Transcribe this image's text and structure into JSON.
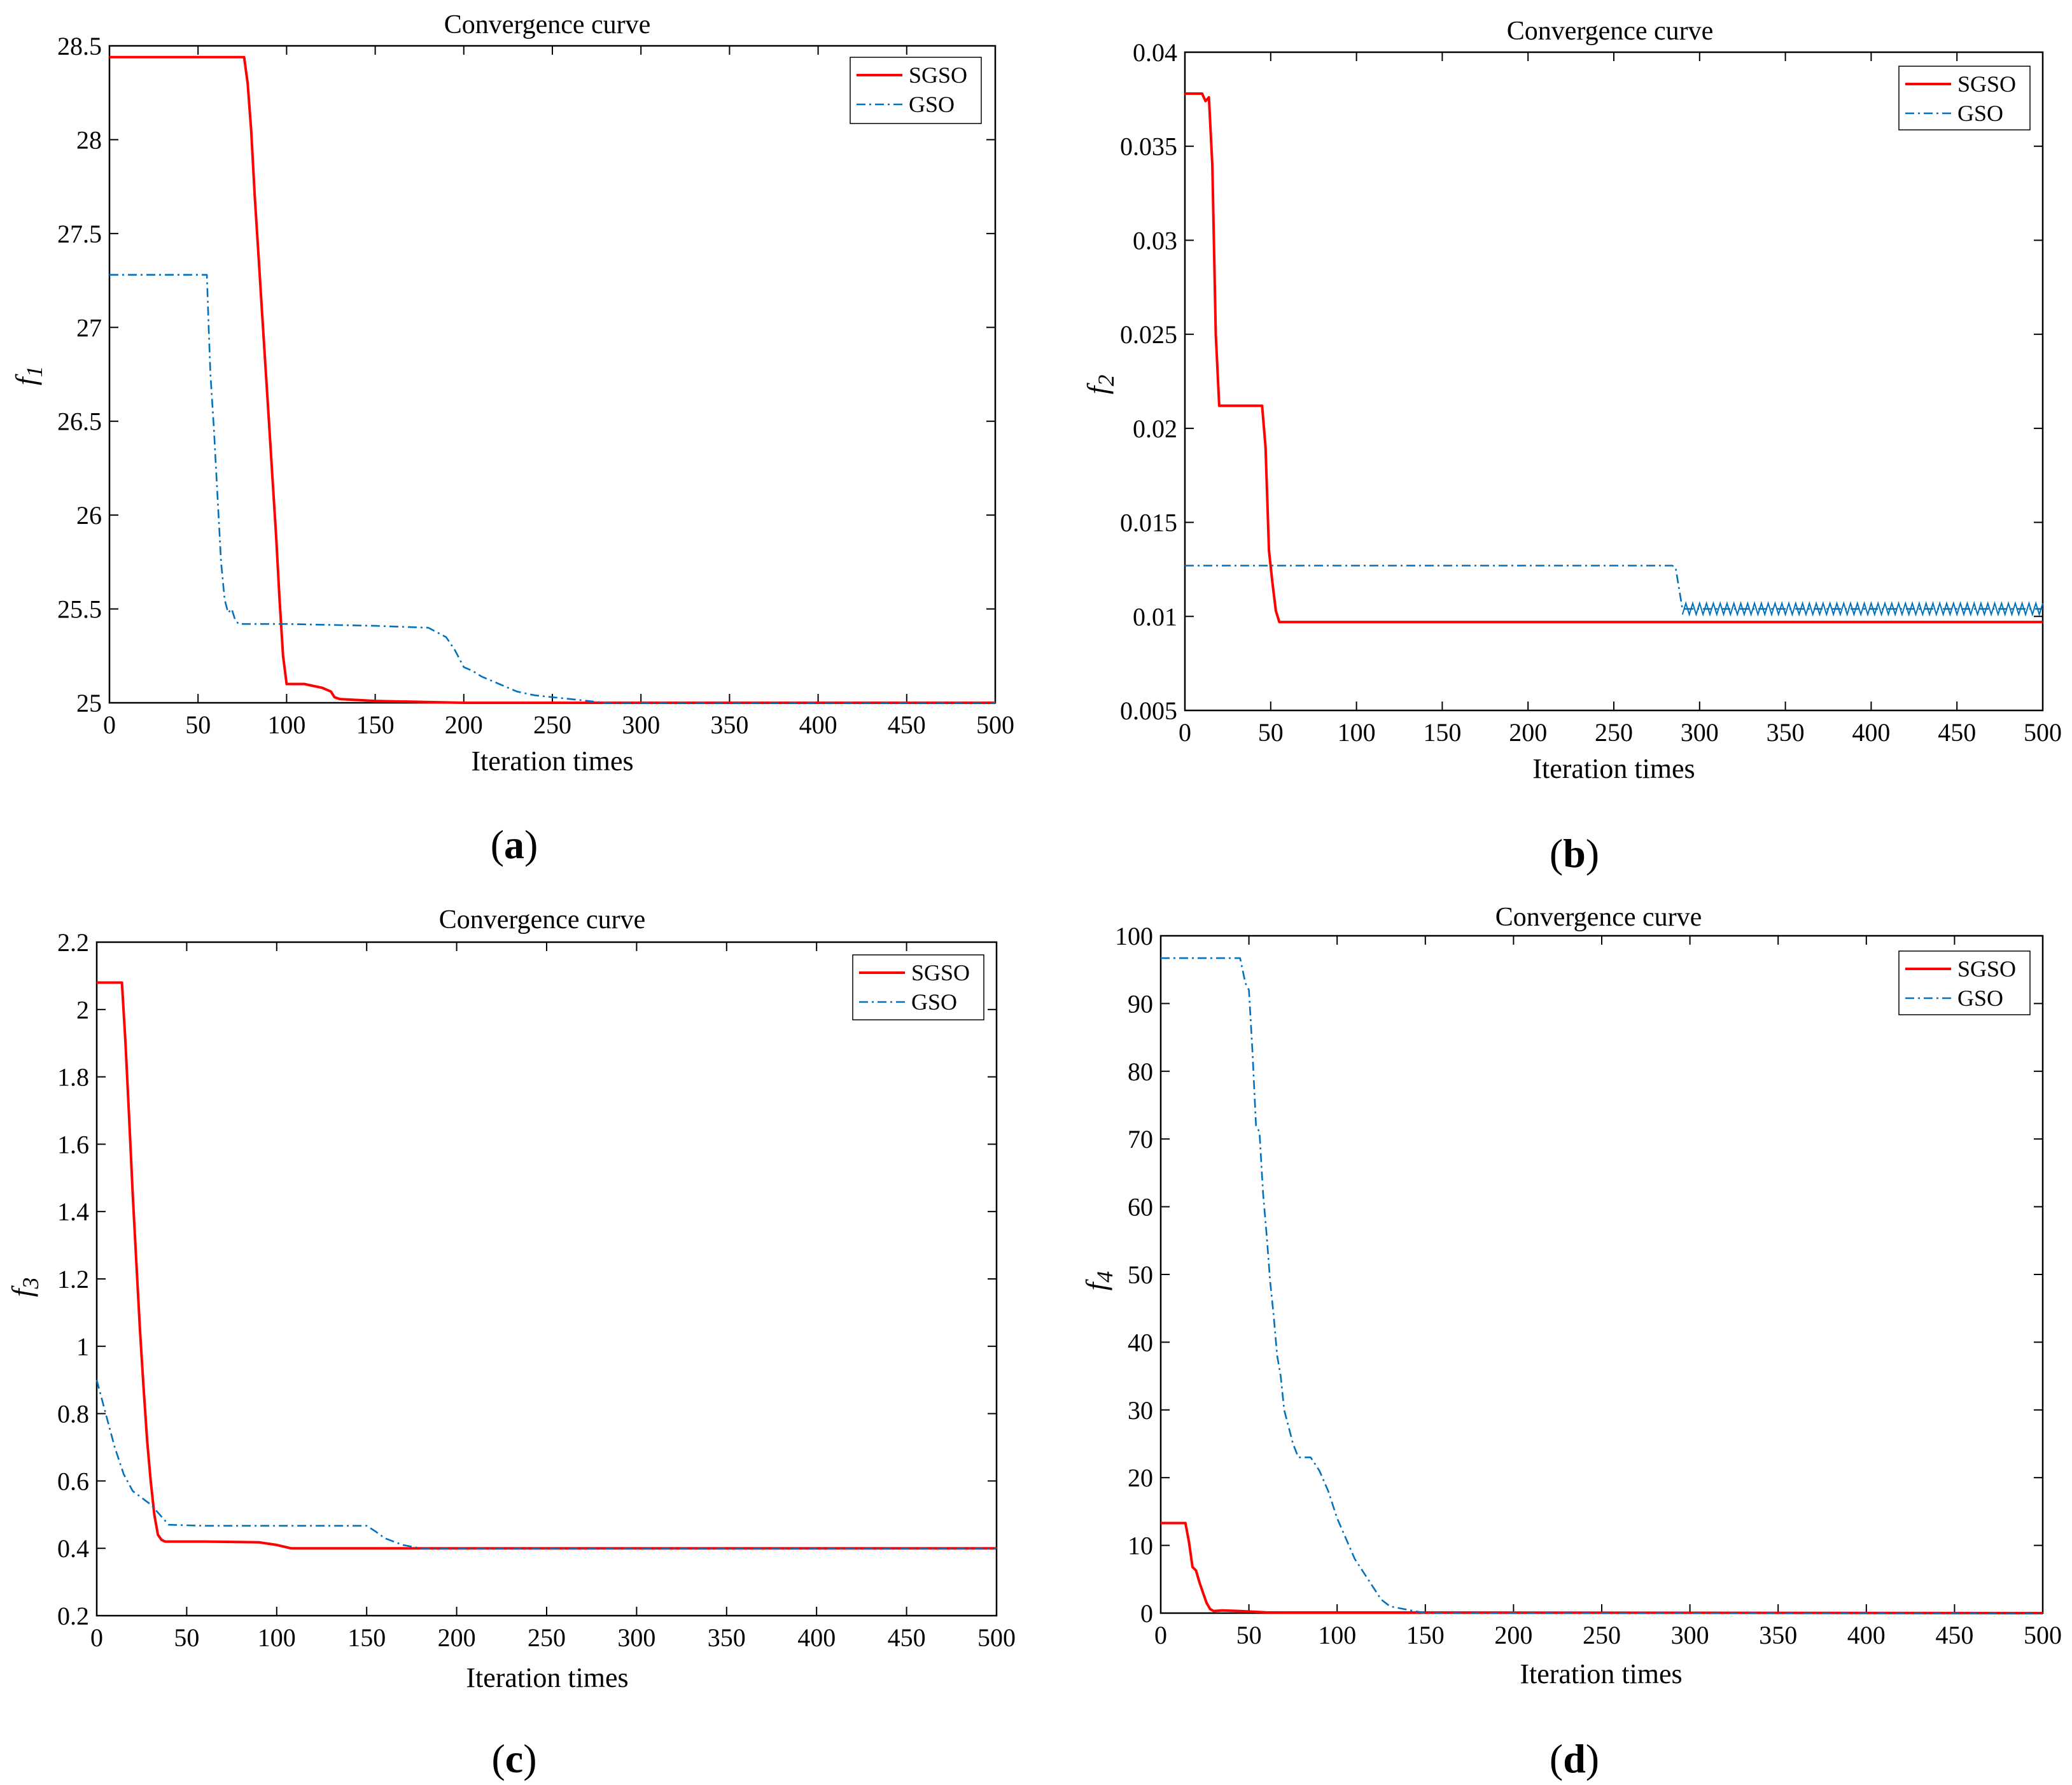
{
  "chart_data": [
    {
      "id": "a",
      "type": "line",
      "title": "Convergence curve",
      "xlabel": "Iteration times",
      "ylabel": "f",
      "ylabel_subscript": "1",
      "caption": "a",
      "xlim": [
        0,
        500
      ],
      "ylim": [
        25,
        28.5
      ],
      "xticks": [
        0,
        50,
        100,
        150,
        200,
        250,
        300,
        350,
        400,
        450,
        500
      ],
      "yticks": [
        25,
        25.5,
        26,
        26.5,
        27,
        27.5,
        28,
        28.5
      ],
      "legend": {
        "position": "top-right",
        "entries": [
          "SGSO",
          "GSO"
        ]
      },
      "series": [
        {
          "name": "SGSO",
          "color": "#ff0000",
          "style": "solid",
          "x": [
            0,
            76,
            78,
            80,
            82,
            84,
            86,
            88,
            90,
            92,
            94,
            96,
            98,
            100,
            102,
            110,
            120,
            125,
            127,
            130,
            150,
            200,
            500
          ],
          "y": [
            28.44,
            28.44,
            28.3,
            28.05,
            27.7,
            27.4,
            27.1,
            26.8,
            26.5,
            26.2,
            25.9,
            25.55,
            25.25,
            25.1,
            25.1,
            25.1,
            25.08,
            25.06,
            25.03,
            25.02,
            25.01,
            25.0,
            25.0
          ]
        },
        {
          "name": "GSO",
          "color": "#0072bd",
          "style": "dashdot",
          "x": [
            0,
            55,
            56,
            57,
            59,
            61,
            63,
            65,
            67,
            69,
            71,
            73,
            80,
            100,
            150,
            180,
            190,
            195,
            200,
            205,
            210,
            220,
            230,
            240,
            250,
            260,
            270,
            280,
            300,
            500
          ],
          "y": [
            27.28,
            27.28,
            27.0,
            26.75,
            26.45,
            26.1,
            25.75,
            25.55,
            25.48,
            25.5,
            25.44,
            25.42,
            25.42,
            25.42,
            25.41,
            25.4,
            25.35,
            25.28,
            25.19,
            25.17,
            25.14,
            25.1,
            25.06,
            25.04,
            25.03,
            25.02,
            25.01,
            25.0,
            25.0,
            25.0
          ]
        }
      ]
    },
    {
      "id": "b",
      "type": "line",
      "title": "Convergence curve",
      "xlabel": "Iteration times",
      "ylabel": "f",
      "ylabel_subscript": "2",
      "caption": "b",
      "xlim": [
        0,
        500
      ],
      "ylim": [
        0.005,
        0.04
      ],
      "xticks": [
        0,
        50,
        100,
        150,
        200,
        250,
        300,
        350,
        400,
        450,
        500
      ],
      "yticks": [
        0.005,
        0.01,
        0.015,
        0.02,
        0.025,
        0.03,
        0.035,
        0.04
      ],
      "legend": {
        "position": "top-right",
        "entries": [
          "SGSO",
          "GSO"
        ]
      },
      "series": [
        {
          "name": "SGSO",
          "color": "#ff0000",
          "style": "solid",
          "x": [
            0,
            10,
            12,
            14,
            16,
            18,
            20,
            22,
            45,
            47,
            49,
            51,
            53,
            55,
            500
          ],
          "y": [
            0.0378,
            0.0378,
            0.0374,
            0.0376,
            0.034,
            0.025,
            0.0212,
            0.0212,
            0.0212,
            0.019,
            0.0135,
            0.0118,
            0.0103,
            0.0097,
            0.0097
          ]
        },
        {
          "name": "GSO",
          "color": "#0072bd",
          "style": "dashdot",
          "x": [
            0,
            284,
            286,
            288,
            290,
            500
          ],
          "y": [
            0.0127,
            0.0127,
            0.0126,
            0.0115,
            0.0104,
            0.0104
          ]
        }
      ]
    },
    {
      "id": "c",
      "type": "line",
      "title": "Convergence curve",
      "xlabel": "Iteration times",
      "ylabel": "f",
      "ylabel_subscript": "3",
      "caption": "c",
      "xlim": [
        0,
        500
      ],
      "ylim": [
        0.2,
        2.2
      ],
      "xticks": [
        0,
        50,
        100,
        150,
        200,
        250,
        300,
        350,
        400,
        450,
        500
      ],
      "yticks": [
        0.2,
        0.4,
        0.6,
        0.8,
        1,
        1.2,
        1.4,
        1.6,
        1.8,
        2,
        2.2
      ],
      "legend": {
        "position": "top-right",
        "entries": [
          "SGSO",
          "GSO"
        ]
      },
      "series": [
        {
          "name": "SGSO",
          "color": "#ff0000",
          "style": "solid",
          "x": [
            0,
            14,
            16,
            18,
            20,
            22,
            24,
            26,
            28,
            30,
            32,
            34,
            36,
            38,
            40,
            60,
            90,
            100,
            108,
            130,
            500
          ],
          "y": [
            2.08,
            2.08,
            1.9,
            1.68,
            1.45,
            1.25,
            1.05,
            0.88,
            0.72,
            0.6,
            0.5,
            0.44,
            0.425,
            0.42,
            0.42,
            0.42,
            0.418,
            0.41,
            0.4,
            0.4,
            0.4
          ]
        },
        {
          "name": "GSO",
          "color": "#0072bd",
          "style": "dashdot",
          "x": [
            0,
            5,
            10,
            15,
            20,
            25,
            30,
            35,
            40,
            60,
            100,
            150,
            155,
            160,
            170,
            180,
            500
          ],
          "y": [
            0.9,
            0.8,
            0.7,
            0.62,
            0.57,
            0.55,
            0.53,
            0.5,
            0.47,
            0.467,
            0.467,
            0.467,
            0.45,
            0.43,
            0.41,
            0.4,
            0.4
          ]
        }
      ]
    },
    {
      "id": "d",
      "type": "line",
      "title": "Convergence curve",
      "xlabel": "Iteration times",
      "ylabel": "f",
      "ylabel_subscript": "4",
      "caption": "d",
      "xlim": [
        0,
        500
      ],
      "ylim": [
        0,
        100
      ],
      "xticks": [
        0,
        50,
        100,
        150,
        200,
        250,
        300,
        350,
        400,
        450,
        500
      ],
      "yticks": [
        0,
        10,
        20,
        30,
        40,
        50,
        60,
        70,
        80,
        90,
        100
      ],
      "legend": {
        "position": "top-right",
        "entries": [
          "SGSO",
          "GSO"
        ]
      },
      "series": [
        {
          "name": "SGSO",
          "color": "#ff0000",
          "style": "solid",
          "x": [
            0,
            14,
            16,
            18,
            20,
            22,
            24,
            26,
            28,
            30,
            35,
            45,
            60,
            500
          ],
          "y": [
            13.3,
            13.3,
            10.5,
            6.8,
            6.3,
            4.5,
            3.0,
            1.5,
            0.6,
            0.3,
            0.4,
            0.3,
            0.1,
            0.0
          ]
        },
        {
          "name": "GSO",
          "color": "#0072bd",
          "style": "dashdot",
          "x": [
            0,
            45,
            48,
            50,
            52,
            54,
            56,
            58,
            60,
            62,
            64,
            66,
            68,
            70,
            75,
            78,
            80,
            85,
            90,
            95,
            100,
            105,
            110,
            115,
            120,
            125,
            130,
            140,
            150,
            500
          ],
          "y": [
            96.7,
            96.7,
            93.0,
            92.0,
            83.0,
            72.0,
            71.0,
            62.0,
            56.0,
            49.0,
            44.0,
            38.0,
            35.0,
            30.0,
            25.0,
            23.0,
            23.0,
            23.0,
            21.0,
            18.0,
            14.0,
            11.0,
            8.0,
            6.0,
            4.0,
            2.0,
            1.0,
            0.5,
            0.0,
            0.0
          ]
        }
      ]
    }
  ]
}
